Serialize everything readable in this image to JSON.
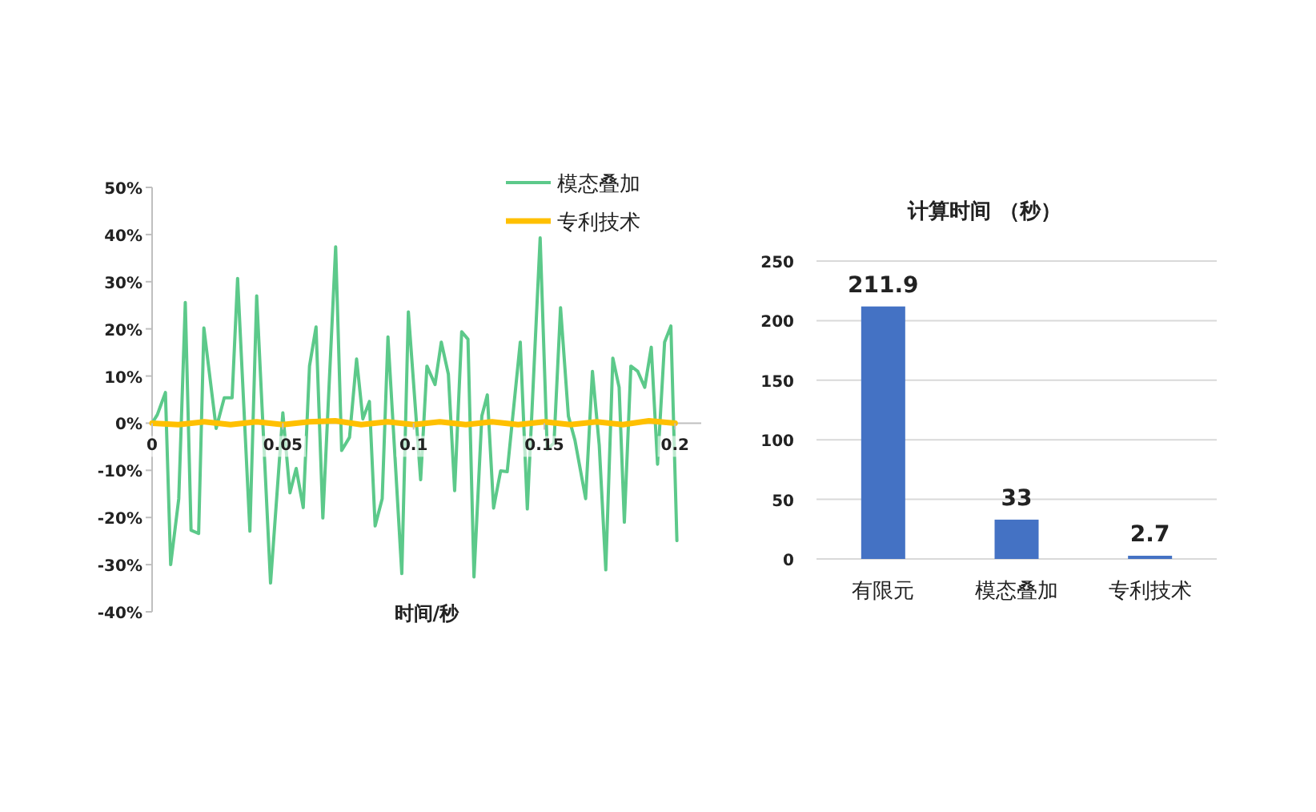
{
  "chart_data": [
    {
      "type": "line",
      "xlabel": "时间/秒",
      "xlim": [
        0,
        0.21
      ],
      "ylim": [
        -40,
        50
      ],
      "xticks": [
        0,
        0.05,
        0.1,
        0.15,
        0.2
      ],
      "yticks": [
        {
          "value": -40,
          "label": "-40%"
        },
        {
          "value": -30,
          "label": "-30%"
        },
        {
          "value": -20,
          "label": "-20%"
        },
        {
          "value": -10,
          "label": "-10%"
        },
        {
          "value": 0,
          "label": "0%"
        },
        {
          "value": 10,
          "label": "10%"
        },
        {
          "value": 20,
          "label": "20%"
        },
        {
          "value": 30,
          "label": "30%"
        },
        {
          "value": 40,
          "label": "40%"
        },
        {
          "value": 50,
          "label": "50%"
        }
      ],
      "legend": "top right",
      "series": [
        {
          "name": "模态叠加",
          "color": "#5cc98a",
          "x": [
            0,
            0.002,
            0.0051,
            0.0071,
            0.0102,
            0.0127,
            0.0149,
            0.0178,
            0.0198,
            0.0245,
            0.0276,
            0.0306,
            0.0327,
            0.0374,
            0.04,
            0.0453,
            0.05,
            0.0527,
            0.0551,
            0.0578,
            0.0602,
            0.0627,
            0.0653,
            0.0702,
            0.0725,
            0.0755,
            0.0782,
            0.0806,
            0.0831,
            0.0853,
            0.088,
            0.0902,
            0.0955,
            0.098,
            0.1027,
            0.1051,
            0.1082,
            0.1106,
            0.1133,
            0.1157,
            0.1184,
            0.1208,
            0.1231,
            0.1261,
            0.1282,
            0.1306,
            0.1333,
            0.1358,
            0.1408,
            0.1435,
            0.1484,
            0.1511,
            0.1537,
            0.1562,
            0.1592,
            0.1617,
            0.1658,
            0.1684,
            0.171,
            0.1735,
            0.1762,
            0.1786,
            0.1806,
            0.1831,
            0.1857,
            0.1884,
            0.1909,
            0.1933,
            0.196,
            0.1984,
            0.2007
          ],
          "values": [
            0,
            1.8,
            6.5,
            -30,
            -16,
            25.6,
            -22.7,
            -23.4,
            20.2,
            -1.1,
            5.4,
            5.4,
            30.7,
            -22.9,
            27,
            -33.9,
            2.2,
            -14.8,
            -9.6,
            -17.9,
            12.1,
            20.4,
            -20.1,
            37.4,
            -5.8,
            -3,
            13.6,
            0.9,
            4.6,
            -21.8,
            -16,
            18.3,
            -31.9,
            23.6,
            -12,
            12.1,
            8.2,
            17.2,
            10.4,
            -14.3,
            19.4,
            17.8,
            -32.6,
            1.5,
            6,
            -18,
            -10.1,
            -10.3,
            17.2,
            -18.2,
            39.3,
            -5.6,
            -4.2,
            24.5,
            1.5,
            -3.6,
            -16,
            11,
            -4.7,
            -31.1,
            13.8,
            7.6,
            -21,
            12.1,
            11,
            7.6,
            16.1,
            -8.7,
            17.2,
            20.6,
            -24.9
          ]
        },
        {
          "name": "专利技术",
          "color": "#ffc000",
          "x": [
            0,
            0.01,
            0.02,
            0.03,
            0.04,
            0.05,
            0.06,
            0.07,
            0.08,
            0.09,
            0.1,
            0.11,
            0.12,
            0.13,
            0.14,
            0.15,
            0.16,
            0.17,
            0.18,
            0.19,
            0.2
          ],
          "values": [
            0,
            -0.3,
            0.3,
            -0.3,
            0.3,
            -0.3,
            0.3,
            0.5,
            -0.3,
            0.3,
            -0.3,
            0.3,
            -0.3,
            0.3,
            -0.3,
            0.3,
            -0.3,
            0.3,
            -0.3,
            0.5,
            0
          ]
        }
      ]
    },
    {
      "type": "bar",
      "title": "计算时间 （秒）",
      "categories": [
        "有限元",
        "模态叠加",
        "专利技术"
      ],
      "values": [
        211.9,
        33,
        2.7
      ],
      "color": "#4472c4",
      "ylim": [
        0,
        250
      ],
      "yticks": [
        0,
        50,
        100,
        150,
        200,
        250
      ],
      "grid": "y",
      "data_labels": true
    }
  ]
}
